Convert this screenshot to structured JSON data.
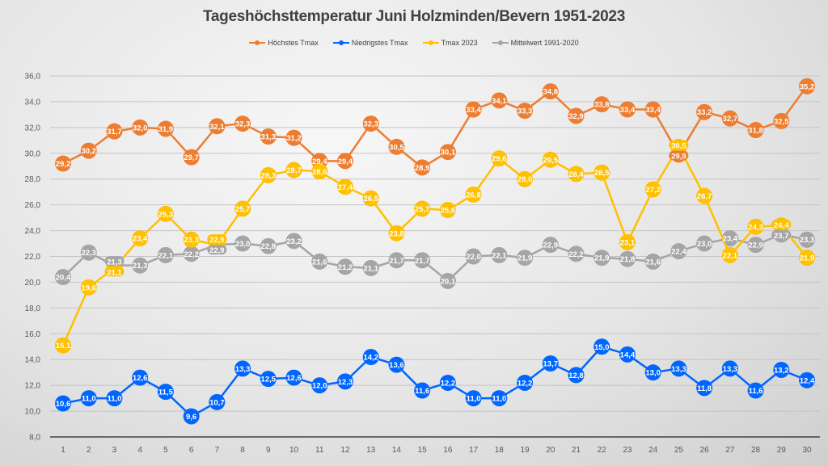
{
  "chart_data": {
    "type": "line",
    "title": "Tageshöchsttemperatur Juni Holzminden/Bevern 1951-2023",
    "xlabel": "",
    "ylabel": "",
    "ylim": [
      8,
      36
    ],
    "y_ticks": [
      "8,0",
      "10,0",
      "12,0",
      "14,0",
      "16,0",
      "18,0",
      "20,0",
      "22,0",
      "24,0",
      "26,0",
      "28,0",
      "30,0",
      "32,0",
      "34,0",
      "36,0"
    ],
    "y_tick_values": [
      8,
      10,
      12,
      14,
      16,
      18,
      20,
      22,
      24,
      26,
      28,
      30,
      32,
      34,
      36
    ],
    "categories": [
      "1",
      "2",
      "3",
      "4",
      "5",
      "6",
      "7",
      "8",
      "9",
      "10",
      "11",
      "12",
      "13",
      "14",
      "15",
      "16",
      "17",
      "18",
      "19",
      "20",
      "21",
      "22",
      "23",
      "24",
      "25",
      "26",
      "27",
      "28",
      "29",
      "30"
    ],
    "grid": true,
    "legend_position": "top",
    "series": [
      {
        "name": "Höchstes Tmax",
        "color": "#ed7d31",
        "values": [
          29.2,
          30.2,
          31.7,
          32.0,
          31.9,
          29.7,
          32.1,
          32.3,
          31.3,
          31.2,
          29.4,
          29.4,
          32.3,
          30.5,
          28.9,
          30.1,
          33.4,
          34.1,
          33.3,
          34.8,
          32.9,
          33.8,
          33.4,
          33.4,
          29.9,
          33.2,
          32.7,
          31.8,
          32.5,
          35.2
        ]
      },
      {
        "name": "Niedrigstes Tmax",
        "color": "#0066ff",
        "values": [
          10.6,
          11.0,
          11.0,
          12.6,
          11.5,
          9.6,
          10.7,
          13.3,
          12.5,
          12.6,
          12.0,
          12.3,
          14.2,
          13.6,
          11.6,
          12.2,
          11.0,
          11.0,
          12.2,
          13.7,
          12.8,
          15.0,
          14.4,
          13.0,
          13.3,
          11.8,
          13.3,
          11.6,
          13.2,
          12.4
        ]
      },
      {
        "name": "Tmax 2023",
        "color": "#ffc000",
        "values": [
          15.1,
          19.6,
          21.1,
          23.4,
          25.3,
          23.3,
          22.9,
          25.7,
          28.3,
          28.7,
          28.6,
          27.4,
          26.5,
          23.8,
          25.7,
          25.6,
          26.8,
          29.6,
          28.0,
          29.5,
          28.4,
          28.5,
          23.1,
          27.2,
          30.5,
          26.7,
          22.1,
          24.3,
          24.4,
          21.9
        ]
      },
      {
        "name": "Mittelwert 1991-2020",
        "color": "#a5a5a5",
        "values": [
          20.4,
          22.3,
          21.3,
          21.3,
          22.1,
          22.2,
          22.9,
          23.0,
          22.8,
          23.2,
          21.6,
          21.2,
          21.1,
          21.7,
          21.7,
          20.1,
          22.0,
          22.1,
          21.9,
          22.9,
          22.2,
          21.9,
          21.8,
          21.6,
          22.4,
          23.0,
          23.4,
          22.9,
          23.7,
          23.3
        ]
      }
    ]
  }
}
